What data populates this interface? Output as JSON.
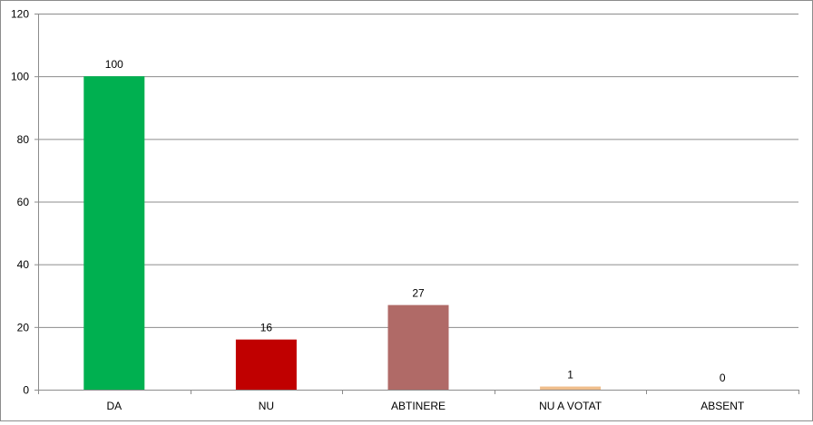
{
  "chart_data": {
    "type": "bar",
    "categories": [
      "DA",
      "NU",
      "ABTINERE",
      "NU A VOTAT",
      "ABSENT"
    ],
    "values": [
      100,
      16,
      27,
      1,
      0
    ],
    "data_labels": [
      "100",
      "16",
      "27",
      "1",
      "0"
    ],
    "colors": [
      "#00B050",
      "#C00000",
      "#B06A67",
      "#F0BE8C",
      "#7F7F7F"
    ],
    "title": "",
    "xlabel": "",
    "ylabel": "",
    "ylim": [
      0,
      120
    ],
    "yticks": [
      0,
      20,
      40,
      60,
      80,
      100,
      120
    ],
    "grid": true,
    "legend": "none"
  }
}
